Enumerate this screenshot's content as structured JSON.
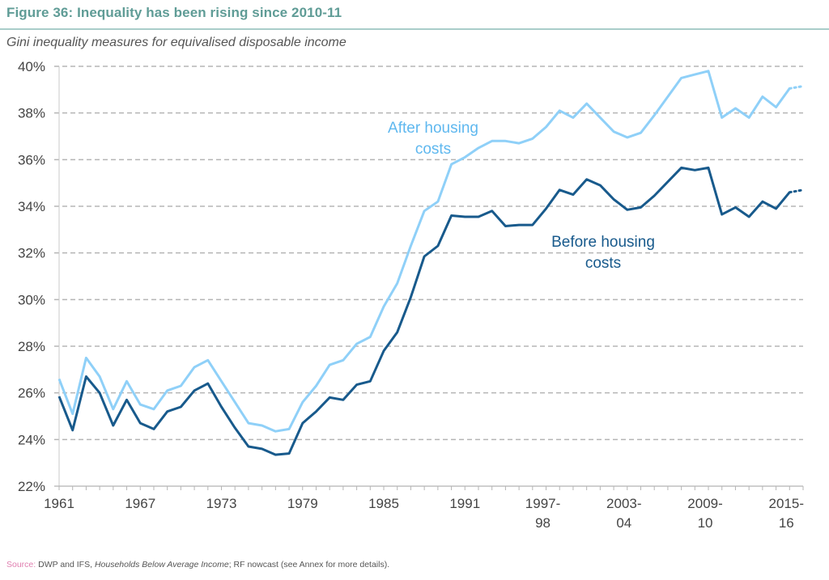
{
  "header": {
    "title": "Figure 36:  Inequality has been rising since 2010-11",
    "subtitle": "Gini inequality measures for equivalised disposable income"
  },
  "footer": {
    "source_label": "Source:",
    "source_text_1": " DWP and IFS, ",
    "source_italic": "Households Below Average Income",
    "source_text_2": "; RF nowcast (see Annex for more details)."
  },
  "chart_data": {
    "type": "line",
    "title": "Figure 36:  Inequality has been rising since 2010-11",
    "subtitle": "Gini inequality measures for equivalised disposable income",
    "xlabel": "",
    "ylabel": "",
    "ylim": [
      22,
      40
    ],
    "y_ticks": [
      22,
      24,
      26,
      28,
      30,
      32,
      34,
      36,
      38,
      40
    ],
    "y_tick_labels": [
      "22%",
      "24%",
      "26%",
      "28%",
      "30%",
      "32%",
      "34%",
      "36%",
      "38%",
      "40%"
    ],
    "grid": "horizontal-dashed",
    "x": [
      "1961",
      "1962",
      "1963",
      "1964",
      "1965",
      "1966",
      "1967",
      "1968",
      "1969",
      "1970",
      "1971",
      "1972",
      "1973",
      "1974",
      "1975",
      "1976",
      "1977",
      "1978",
      "1979",
      "1980",
      "1981",
      "1982",
      "1983",
      "1984",
      "1985",
      "1986",
      "1987",
      "1988",
      "1989",
      "1990",
      "1991",
      "1992",
      "1993-94",
      "1994-95",
      "1995-96",
      "1996-97",
      "1997-98",
      "1998-99",
      "1999-00",
      "2000-01",
      "2001-02",
      "2002-03",
      "2003-04",
      "2004-05",
      "2005-06",
      "2006-07",
      "2007-08",
      "2008-09",
      "2009-10",
      "2010-11",
      "2011-12",
      "2012-13",
      "2013-14",
      "2014-15",
      "2015-16",
      "2016-17"
    ],
    "x_tick_labels": [
      {
        "index": 0,
        "line1": "1961",
        "line2": ""
      },
      {
        "index": 6,
        "line1": "1967",
        "line2": ""
      },
      {
        "index": 12,
        "line1": "1973",
        "line2": ""
      },
      {
        "index": 18,
        "line1": "1979",
        "line2": ""
      },
      {
        "index": 24,
        "line1": "1985",
        "line2": ""
      },
      {
        "index": 30,
        "line1": "1991",
        "line2": ""
      },
      {
        "index": 36,
        "line1": "1997-",
        "line2": "98"
      },
      {
        "index": 42,
        "line1": "2003-",
        "line2": "04"
      },
      {
        "index": 48,
        "line1": "2009-",
        "line2": "10"
      },
      {
        "index": 54,
        "line1": "2015-",
        "line2": "16"
      }
    ],
    "nowcast_from_index": 54,
    "series": [
      {
        "name": "After housing costs",
        "label_line1": "After housing",
        "label_line2": "costs",
        "color": "#8fd0f8",
        "values": [
          26.6,
          25.1,
          27.5,
          26.7,
          25.3,
          26.5,
          25.5,
          25.3,
          26.1,
          26.3,
          27.1,
          27.4,
          26.5,
          25.6,
          24.7,
          24.6,
          24.35,
          24.45,
          25.6,
          26.3,
          27.2,
          27.4,
          28.1,
          28.4,
          29.7,
          30.7,
          32.3,
          33.8,
          34.2,
          35.8,
          36.1,
          36.5,
          36.8,
          36.8,
          36.7,
          36.9,
          37.4,
          38.1,
          37.8,
          38.4,
          37.8,
          37.2,
          36.95,
          37.15,
          37.9,
          38.7,
          39.5,
          39.65,
          39.8,
          37.8,
          38.2,
          37.8,
          38.7,
          38.25,
          39.05,
          39.15
        ]
      },
      {
        "name": "Before housing costs",
        "label_line1": "Before housing",
        "label_line2": "costs",
        "color": "#185a8c",
        "values": [
          25.85,
          24.4,
          26.7,
          26.0,
          24.6,
          25.7,
          24.7,
          24.45,
          25.2,
          25.4,
          26.1,
          26.4,
          25.4,
          24.5,
          23.7,
          23.6,
          23.35,
          23.4,
          24.7,
          25.2,
          25.8,
          25.7,
          26.35,
          26.5,
          27.8,
          28.6,
          30.1,
          31.85,
          32.3,
          33.6,
          33.55,
          33.55,
          33.8,
          33.15,
          33.2,
          33.2,
          33.9,
          34.7,
          34.5,
          35.15,
          34.9,
          34.3,
          33.85,
          33.95,
          34.45,
          35.05,
          35.65,
          35.55,
          35.65,
          33.65,
          33.95,
          33.55,
          34.2,
          33.9,
          34.6,
          34.7
        ]
      }
    ]
  }
}
